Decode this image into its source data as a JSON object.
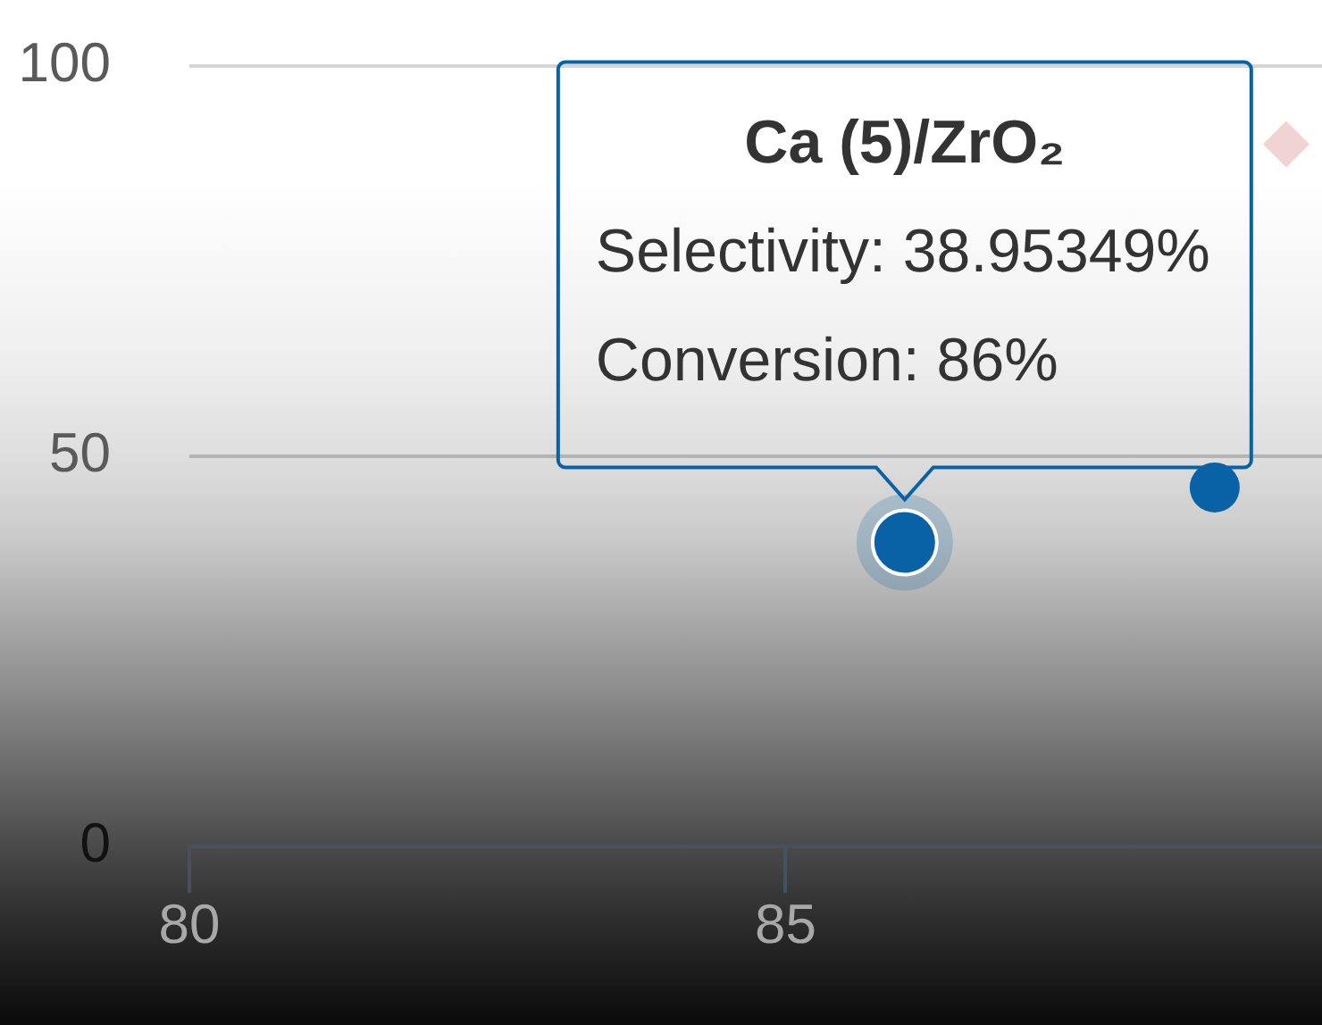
{
  "chart_data": {
    "type": "scatter",
    "marker": "circle",
    "series": [
      {
        "color": "#0a62a6",
        "x": [
          86,
          88.6
        ],
        "values": [
          38.95349,
          46
        ]
      },
      {
        "color": "#f0d3d3",
        "marker": "diamond",
        "x": [
          89.2
        ],
        "values": [
          90
        ]
      }
    ],
    "xlim": [
      80,
      89.5
    ],
    "xticks": [
      80,
      85
    ],
    "ylim": [
      0,
      100
    ],
    "yticks": [
      0,
      50,
      100
    ],
    "grid": "y",
    "legend": false,
    "annotations": [
      {
        "text": "Ca (5)/ZrO₂\nSelectivity: 38.95349%\nConversion: 86%",
        "x": 86,
        "y": 38.95349
      }
    ]
  }
}
